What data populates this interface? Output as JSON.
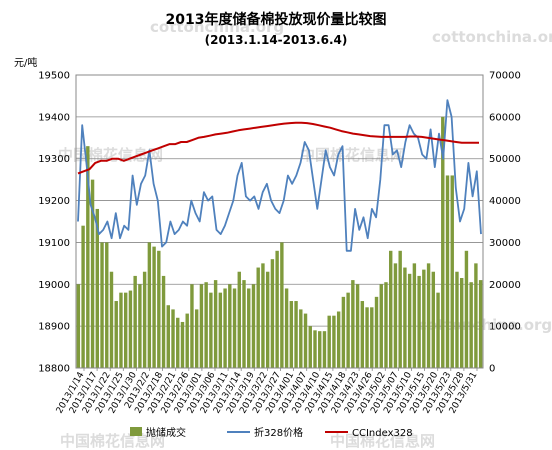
{
  "watermark": {
    "url": "cottonchina.org",
    "cn": "中国棉花信息网"
  },
  "chart_data": {
    "type": "bar+line",
    "title": "2013年度储备棉投放现价量比较图",
    "subtitle": "(2013.1.14-2013.6.4)",
    "ylabel_left": "元/吨",
    "y_left": {
      "min": 18800,
      "max": 19500,
      "ticks": [
        18800,
        18900,
        19000,
        19100,
        19200,
        19300,
        19400,
        19500
      ]
    },
    "y_right": {
      "min": 0,
      "max": 70000,
      "ticks": [
        0,
        10000,
        20000,
        30000,
        40000,
        50000,
        60000,
        70000
      ]
    },
    "x_tick_labels": [
      "2013/1/14",
      "2013/1/17",
      "2013/1/22",
      "2013/1/25",
      "2013/1/30",
      "2013/2/2",
      "2013/2/18",
      "2013/2/21",
      "2013/2/26",
      "2013/3/01",
      "2013/3/06",
      "2013/3/11",
      "2013/3/14",
      "2013/3/19",
      "2013/3/22",
      "2013/3/27",
      "2013/4/01",
      "2013/4/07",
      "2013/4/10",
      "2013/4/15",
      "2013/4/18",
      "2013/4/23",
      "2013/4/26",
      "2013/5/02",
      "2013/5/07",
      "2013/5/10",
      "2013/5/15",
      "2013/5/20",
      "2013/5/23",
      "2013/5/28",
      "2013/5/31"
    ],
    "legend": [
      "抛储成交",
      "折328价格",
      "CCIndex328"
    ],
    "colors": {
      "bars": "#7f9a3c",
      "price": "#4f81bd",
      "index": "#c00000"
    },
    "grid": true,
    "series": [
      {
        "name": "抛储成交",
        "axis": "right",
        "type": "bar",
        "values": [
          20000,
          34000,
          53000,
          45000,
          38000,
          30000,
          30000,
          23000,
          16000,
          18000,
          18000,
          18500,
          22000,
          20000,
          23000,
          30000,
          29000,
          28000,
          22000,
          15000,
          14000,
          12000,
          11000,
          13000,
          20000,
          14000,
          20000,
          20500,
          18000,
          21000,
          18000,
          19000,
          20000,
          19000,
          23000,
          21000,
          19000,
          20000,
          24000,
          25000,
          23000,
          26000,
          28000,
          30000,
          19000,
          16000,
          16000,
          14000,
          13000,
          10000,
          9000,
          8800,
          8800,
          12500,
          12500,
          13500,
          17000,
          18000,
          21000,
          20000,
          16000,
          14500,
          14500,
          17000,
          20000,
          20500,
          28000,
          25000,
          28000,
          24000,
          22500,
          25000,
          22000,
          23500,
          25000,
          23000,
          18000,
          60000,
          46000,
          46000,
          23000,
          21500,
          28000,
          20500,
          25000,
          21000
        ],
        "interactable_note": ""
      },
      {
        "name": "折328价格",
        "axis": "left",
        "type": "line",
        "values": [
          19150,
          19380,
          19290,
          19190,
          19160,
          19120,
          19130,
          19150,
          19110,
          19170,
          19110,
          19140,
          19130,
          19260,
          19190,
          19240,
          19260,
          19320,
          19240,
          19200,
          19090,
          19100,
          19150,
          19120,
          19130,
          19150,
          19140,
          19200,
          19170,
          19150,
          19220,
          19200,
          19210,
          19130,
          19120,
          19140,
          19170,
          19200,
          19260,
          19290,
          19210,
          19200,
          19210,
          19180,
          19220,
          19240,
          19200,
          19180,
          19170,
          19200,
          19260,
          19240,
          19260,
          19290,
          19340,
          19320,
          19250,
          19180,
          19250,
          19320,
          19280,
          19260,
          19310,
          19330,
          19080,
          19080,
          19180,
          19130,
          19160,
          19110,
          19180,
          19160,
          19250,
          19380,
          19380,
          19310,
          19320,
          19280,
          19340,
          19380,
          19360,
          19350,
          19310,
          19300,
          19370,
          19280,
          19360,
          19300,
          19440,
          19400,
          19230,
          19150,
          19180,
          19290,
          19210,
          19270,
          19120
        ],
        "interactable_note": ""
      },
      {
        "name": "CCIndex328",
        "axis": "left",
        "type": "line",
        "values": [
          19265,
          19270,
          19275,
          19290,
          19295,
          19295,
          19300,
          19300,
          19295,
          19300,
          19305,
          19310,
          19315,
          19320,
          19325,
          19330,
          19335,
          19335,
          19340,
          19340,
          19345,
          19350,
          19352,
          19355,
          19358,
          19360,
          19362,
          19365,
          19368,
          19370,
          19372,
          19374,
          19376,
          19378,
          19380,
          19382,
          19384,
          19385,
          19386,
          19386,
          19385,
          19383,
          19380,
          19377,
          19374,
          19370,
          19366,
          19363,
          19360,
          19358,
          19356,
          19354,
          19353,
          19352,
          19352,
          19352,
          19352,
          19352,
          19353,
          19353,
          19352,
          19350,
          19348,
          19346,
          19344,
          19342,
          19340,
          19338,
          19338,
          19338,
          19338
        ]
      }
    ]
  }
}
